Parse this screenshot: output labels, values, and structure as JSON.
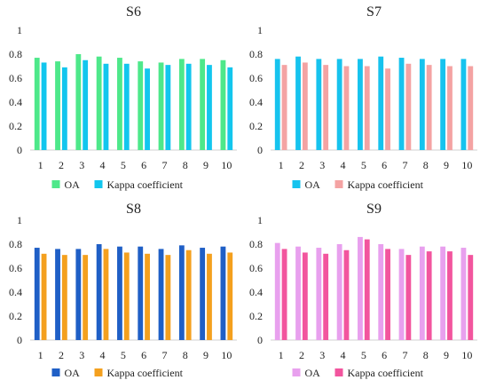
{
  "chart_data": [
    {
      "type": "bar",
      "title": "S6",
      "categories": [
        "1",
        "2",
        "3",
        "4",
        "5",
        "6",
        "7",
        "8",
        "9",
        "10"
      ],
      "ylim": [
        0,
        1
      ],
      "yticks": [
        "0",
        "0.2",
        "0.4",
        "0.6",
        "0.8",
        "1"
      ],
      "grid": false,
      "legend_position": "bottom",
      "series": [
        {
          "name": "OA",
          "color": "#4ee88a",
          "values": [
            0.77,
            0.74,
            0.8,
            0.78,
            0.77,
            0.74,
            0.73,
            0.76,
            0.76,
            0.75
          ]
        },
        {
          "name": "Kappa coefficient",
          "color": "#12c6ee",
          "values": [
            0.73,
            0.69,
            0.75,
            0.72,
            0.72,
            0.68,
            0.71,
            0.72,
            0.71,
            0.69
          ]
        }
      ]
    },
    {
      "type": "bar",
      "title": "S7",
      "categories": [
        "1",
        "2",
        "3",
        "4",
        "5",
        "6",
        "7",
        "8",
        "9",
        "10"
      ],
      "ylim": [
        0,
        1
      ],
      "yticks": [
        "0",
        "0.2",
        "0.4",
        "0.6",
        "0.8",
        "1"
      ],
      "grid": false,
      "legend_position": "bottom",
      "series": [
        {
          "name": "OA",
          "color": "#16c3ee",
          "values": [
            0.76,
            0.78,
            0.76,
            0.76,
            0.76,
            0.78,
            0.77,
            0.76,
            0.76,
            0.76
          ]
        },
        {
          "name": "Kappa coefficient",
          "color": "#f4a3a3",
          "values": [
            0.71,
            0.73,
            0.71,
            0.7,
            0.7,
            0.68,
            0.72,
            0.71,
            0.7,
            0.7
          ]
        }
      ]
    },
    {
      "type": "bar",
      "title": "S8",
      "categories": [
        "1",
        "2",
        "3",
        "4",
        "5",
        "6",
        "7",
        "8",
        "9",
        "10"
      ],
      "ylim": [
        0,
        1
      ],
      "yticks": [
        "0",
        "0.2",
        "0.4",
        "0.6",
        "0.8",
        "1"
      ],
      "grid": false,
      "legend_position": "bottom",
      "series": [
        {
          "name": "OA",
          "color": "#1f5fc6",
          "values": [
            0.77,
            0.76,
            0.76,
            0.8,
            0.78,
            0.78,
            0.76,
            0.79,
            0.77,
            0.78
          ]
        },
        {
          "name": "Kappa coefficient",
          "color": "#f4a01e",
          "values": [
            0.72,
            0.71,
            0.71,
            0.76,
            0.73,
            0.72,
            0.71,
            0.75,
            0.72,
            0.73
          ]
        }
      ]
    },
    {
      "type": "bar",
      "title": "S9",
      "categories": [
        "1",
        "2",
        "3",
        "4",
        "5",
        "6",
        "7",
        "8",
        "9",
        "10"
      ],
      "ylim": [
        0,
        1
      ],
      "yticks": [
        "0",
        "0.2",
        "0.4",
        "0.6",
        "0.8",
        "1"
      ],
      "grid": false,
      "legend_position": "bottom",
      "series": [
        {
          "name": "OA",
          "color": "#e8a0ee",
          "values": [
            0.81,
            0.78,
            0.77,
            0.8,
            0.86,
            0.8,
            0.76,
            0.78,
            0.78,
            0.77
          ]
        },
        {
          "name": "Kappa coefficient",
          "color": "#f2559e",
          "values": [
            0.76,
            0.73,
            0.72,
            0.75,
            0.84,
            0.76,
            0.71,
            0.74,
            0.74,
            0.71
          ]
        }
      ]
    }
  ]
}
